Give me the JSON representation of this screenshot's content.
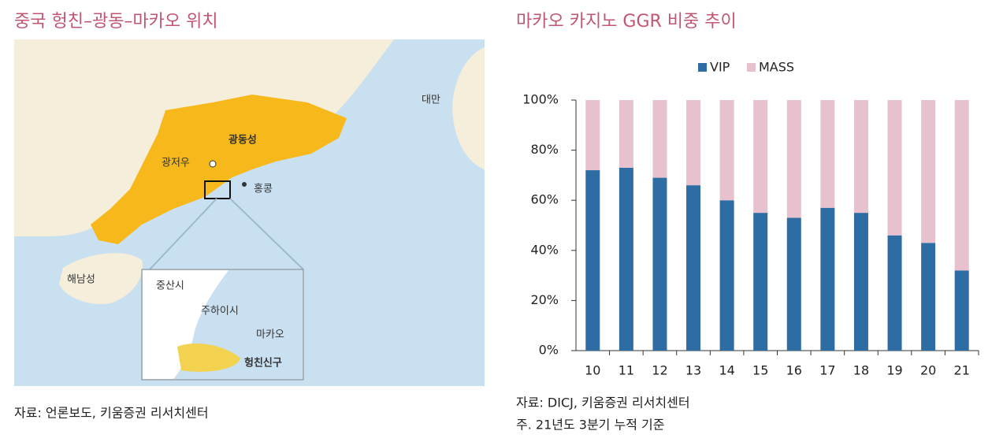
{
  "left_panel": {
    "title": "중국 헝친–광동–마카오 위치",
    "map_labels": {
      "taiwan": "대만",
      "guangdong": "광동성",
      "guangzhou": "광저우",
      "hongkong": "홍콩",
      "hainan": "해남성",
      "zhongshan": "중산시",
      "zhuhai": "주하이시",
      "macau": "마카오",
      "hengqin": "헝친신구"
    },
    "source": "자료: 언론보도, 키움증권 리서치센터"
  },
  "chart_data": {
    "type": "bar",
    "stacked": true,
    "title": "마카오 카지노 GGR 비중 추이",
    "categories": [
      "10",
      "11",
      "12",
      "13",
      "14",
      "15",
      "16",
      "17",
      "18",
      "19",
      "20",
      "21"
    ],
    "series": [
      {
        "name": "VIP",
        "color": "#2e6da4",
        "values": [
          72,
          73,
          69,
          66,
          60,
          55,
          53,
          57,
          55,
          46,
          43,
          32
        ]
      },
      {
        "name": "MASS",
        "color": "#e8c1cf",
        "values": [
          28,
          27,
          31,
          34,
          40,
          45,
          47,
          43,
          45,
          54,
          57,
          68
        ]
      }
    ],
    "ylim": [
      0,
      100
    ],
    "yticks": [
      {
        "value": 0,
        "label": "0%"
      },
      {
        "value": 20,
        "label": "20%"
      },
      {
        "value": 40,
        "label": "40%"
      },
      {
        "value": 60,
        "label": "60%"
      },
      {
        "value": 80,
        "label": "80%"
      },
      {
        "value": 100,
        "label": "100%"
      }
    ],
    "legend": "top",
    "grid": false,
    "notes": [
      "자료: DICJ, 키움증권 리서치센터",
      "주. 21년도 3분기 누적 기준"
    ]
  }
}
